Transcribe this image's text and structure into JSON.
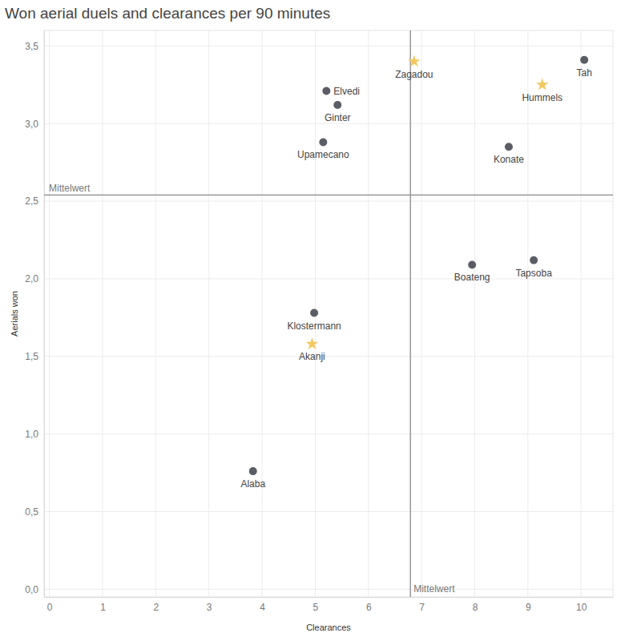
{
  "chart_data": {
    "type": "scatter",
    "title": "Won aerial duels and clearances per 90 minutes",
    "x_label": "Clearances",
    "y_label": "Aerials won",
    "xlim": [
      -0.1,
      10.6
    ],
    "ylim": [
      -0.05,
      3.6
    ],
    "xticks": [
      0,
      1,
      2,
      3,
      4,
      5,
      6,
      7,
      8,
      9,
      10
    ],
    "yticks": [
      {
        "value": 0,
        "label": "0,0"
      },
      {
        "value": 0.5,
        "label": "0,5"
      },
      {
        "value": 1,
        "label": "1,0"
      },
      {
        "value": 1.5,
        "label": "1,5"
      },
      {
        "value": 2,
        "label": "2,0"
      },
      {
        "value": 2.5,
        "label": "2,5"
      },
      {
        "value": 3,
        "label": "3,0"
      },
      {
        "value": 3.5,
        "label": "3,5"
      }
    ],
    "grid": true,
    "annotations": [
      {
        "axis": "x",
        "value": 6.79,
        "label": "Mittelwert"
      },
      {
        "axis": "y",
        "value": 2.54,
        "label": "Mittelwert"
      }
    ],
    "series": [
      {
        "color": "#5b5d66",
        "marker": "circle",
        "labels": [
          "Tah",
          "Elvedi",
          "Ginter",
          "Upamecano",
          "Konate",
          "Boateng",
          "Tapsoba",
          "Klostermann",
          "Alaba"
        ],
        "x": [
          10.06,
          5.21,
          5.42,
          5.15,
          8.64,
          7.95,
          9.11,
          4.98,
          3.83
        ],
        "values": [
          3.41,
          3.21,
          3.12,
          2.88,
          2.85,
          2.09,
          2.12,
          1.78,
          0.76
        ]
      },
      {
        "color": "#f3c85f",
        "marker": "star",
        "labels": [
          "Zagadou",
          "Hummels",
          "Akanji"
        ],
        "x": [
          6.86,
          9.27,
          4.94
        ],
        "values": [
          3.4,
          3.25,
          1.58
        ]
      }
    ]
  }
}
